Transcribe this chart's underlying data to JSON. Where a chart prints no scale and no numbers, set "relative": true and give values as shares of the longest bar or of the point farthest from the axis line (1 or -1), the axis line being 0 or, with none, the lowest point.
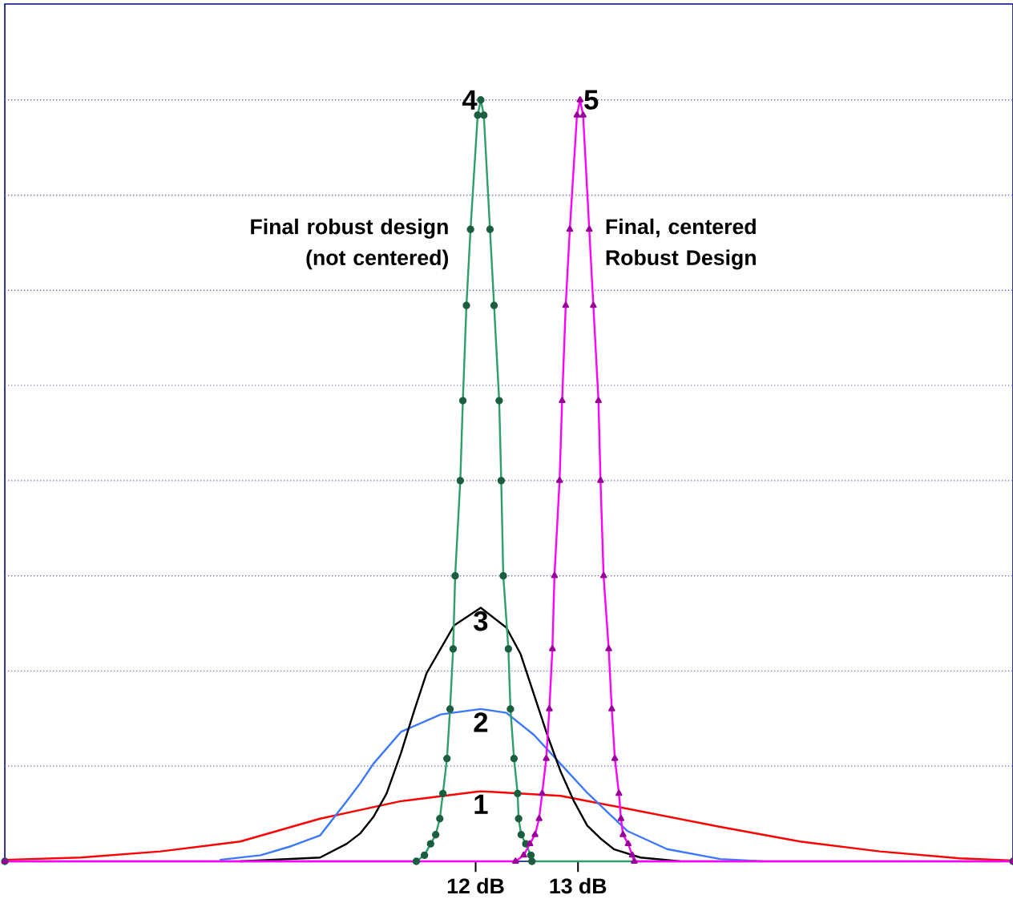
{
  "chart_data": {
    "type": "line",
    "relative": true,
    "xlim": [
      7.4,
      17.25
    ],
    "xticks": [
      {
        "value": 12,
        "label": "12 dB"
      },
      {
        "value": 13,
        "label": "13 dB"
      }
    ],
    "series": [
      {
        "name": "1",
        "color": "#ff0000",
        "marker": "none",
        "x": [
          7.4,
          8.14,
          8.92,
          9.7,
          10.48,
          11.27,
          12.05,
          12.83,
          13.6,
          14.4,
          15.17,
          15.95,
          16.73,
          17.25
        ],
        "values": [
          0.002,
          0.005,
          0.013,
          0.026,
          0.056,
          0.079,
          0.092,
          0.086,
          0.066,
          0.045,
          0.026,
          0.013,
          0.004,
          0.001
        ]
      },
      {
        "name": "2",
        "color": "#3c78ff",
        "marker": "none",
        "x": [
          9.5,
          9.9,
          10.2,
          10.48,
          10.74,
          10.875,
          11.0,
          11.27,
          11.66,
          12.05,
          12.3,
          12.57,
          12.83,
          13.09,
          13.48,
          13.87,
          14.39,
          14.8
        ],
        "values": [
          0.002,
          0.008,
          0.02,
          0.034,
          0.079,
          0.103,
          0.128,
          0.17,
          0.193,
          0.2,
          0.195,
          0.166,
          0.128,
          0.09,
          0.04,
          0.016,
          0.003,
          0
        ]
      },
      {
        "name": "3",
        "color": "#000000",
        "marker": "none",
        "x": [
          9.7,
          10.48,
          10.74,
          10.875,
          11.0,
          11.13,
          11.27,
          11.4,
          11.52,
          11.79,
          12.05,
          12.3,
          12.44,
          12.57,
          12.7,
          12.83,
          12.96,
          13.09,
          13.22,
          13.35,
          13.61,
          14.0
        ],
        "values": [
          0,
          0.005,
          0.023,
          0.037,
          0.058,
          0.089,
          0.142,
          0.198,
          0.247,
          0.31,
          0.333,
          0.307,
          0.272,
          0.219,
          0.166,
          0.118,
          0.079,
          0.047,
          0.03,
          0.016,
          0.005,
          0
        ]
      },
      {
        "name": "4",
        "color": "#2e9e6a",
        "marker": "circle",
        "x": [
          7.4,
          11.42,
          11.5,
          11.56,
          11.61,
          11.65,
          11.68,
          11.72,
          11.75,
          11.78,
          11.8,
          11.85,
          11.875,
          11.91,
          11.95,
          12.02,
          12.05,
          12.08,
          12.14,
          12.18,
          12.23,
          12.25,
          12.27,
          12.32,
          12.34,
          12.375,
          12.41,
          12.42,
          12.445,
          12.49,
          12.54,
          12.55,
          17.25
        ],
        "values": [
          0,
          0,
          0.008,
          0.023,
          0.035,
          0.056,
          0.089,
          0.135,
          0.2,
          0.279,
          0.375,
          0.5,
          0.605,
          0.73,
          0.83,
          0.98,
          1.0,
          0.98,
          0.83,
          0.73,
          0.605,
          0.5,
          0.375,
          0.279,
          0.2,
          0.135,
          0.089,
          0.056,
          0.035,
          0.023,
          0.008,
          0,
          0
        ]
      },
      {
        "name": "5",
        "color": "#ff00ff",
        "marker": "triangle",
        "x": [
          7.4,
          12.39,
          12.47,
          12.53,
          12.58,
          12.62,
          12.65,
          12.69,
          12.72,
          12.75,
          12.77,
          12.82,
          12.845,
          12.88,
          12.92,
          12.99,
          13.02,
          13.05,
          13.11,
          13.15,
          13.2,
          13.22,
          13.25,
          13.3,
          13.33,
          13.36,
          13.4,
          13.42,
          13.44,
          13.49,
          13.53,
          13.55,
          17.25
        ],
        "values": [
          0,
          0,
          0.008,
          0.023,
          0.035,
          0.056,
          0.089,
          0.135,
          0.2,
          0.279,
          0.375,
          0.5,
          0.605,
          0.73,
          0.83,
          0.98,
          1.0,
          0.98,
          0.83,
          0.73,
          0.605,
          0.5,
          0.375,
          0.279,
          0.2,
          0.135,
          0.089,
          0.056,
          0.035,
          0.023,
          0.008,
          0,
          0
        ]
      }
    ],
    "ref_lines": [
      {
        "axis": "y",
        "value": 0.125,
        "color": "#6a6ab0",
        "line_style": "dotted"
      },
      {
        "axis": "y",
        "value": 0.25,
        "color": "#6a6ab0",
        "line_style": "dotted"
      },
      {
        "axis": "y",
        "value": 0.375,
        "color": "#6a6ab0",
        "line_style": "dotted"
      },
      {
        "axis": "y",
        "value": 0.5,
        "color": "#6a6ab0",
        "line_style": "dotted"
      },
      {
        "axis": "y",
        "value": 0.625,
        "color": "#6a6ab0",
        "line_style": "dotted"
      },
      {
        "axis": "y",
        "value": 0.75,
        "color": "#6a6ab0",
        "line_style": "dotted"
      },
      {
        "axis": "y",
        "value": 0.875,
        "color": "#6a6ab0",
        "line_style": "dotted"
      },
      {
        "axis": "y",
        "value": 1.0,
        "color": "#6a6ab0",
        "line_style": "dotted"
      }
    ],
    "annotations": [
      "Final robust design (not centered)",
      "Final, centered Robust Design"
    ]
  }
}
